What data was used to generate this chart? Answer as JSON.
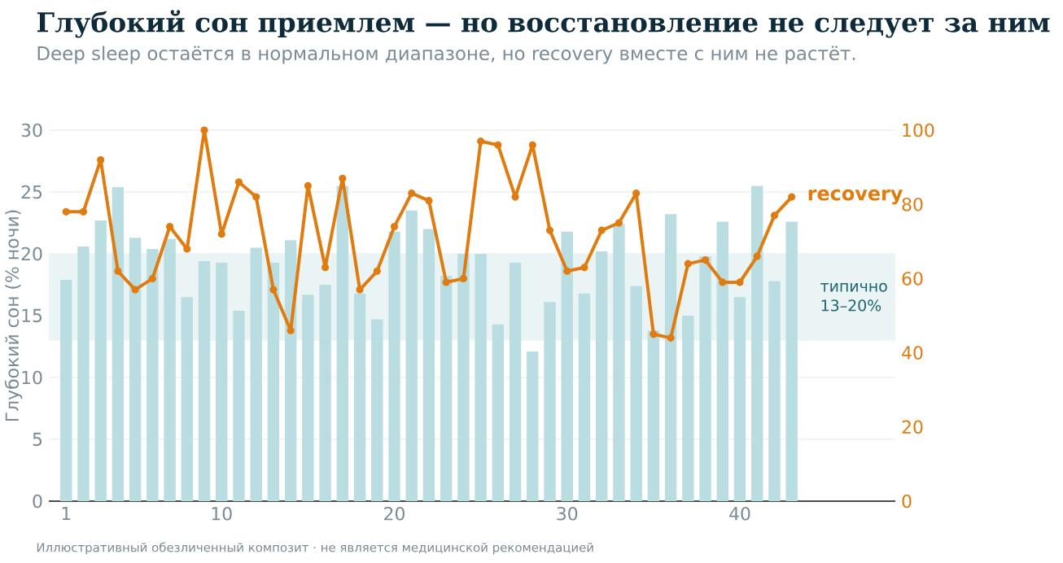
{
  "chart_data": {
    "type": "bar",
    "title": "Глубокий сон приемлем — но восстановление не следует за ним",
    "subtitle": "Deep sleep остаётся в нормальном диапазоне, но recovery вместе с ним не растёт.",
    "ylabel": "Глубокий сон (% ночи)",
    "x": [
      1,
      2,
      3,
      4,
      5,
      6,
      7,
      8,
      9,
      10,
      11,
      12,
      13,
      14,
      15,
      16,
      17,
      18,
      19,
      20,
      21,
      22,
      23,
      24,
      25,
      26,
      27,
      28,
      29,
      30,
      31,
      32,
      33,
      34,
      35,
      36,
      37,
      38,
      39,
      40,
      41,
      42,
      43
    ],
    "series": [
      {
        "color": "#b9dde1",
        "values": [
          17.9,
          20.6,
          22.7,
          25.4,
          21.3,
          20.4,
          21.2,
          16.5,
          19.4,
          19.3,
          15.4,
          20.5,
          19.3,
          21.1,
          16.7,
          17.5,
          25.5,
          16.8,
          14.7,
          21.8,
          23.5,
          22.0,
          18.2,
          20.0,
          20.0,
          14.3,
          19.3,
          12.1,
          16.1,
          21.8,
          16.8,
          20.2,
          22.4,
          17.4,
          13.8,
          23.2,
          15.0,
          19.8,
          22.6,
          16.5,
          25.5,
          17.8,
          22.6
        ]
      },
      {
        "type": "line",
        "name": "recovery",
        "color": "#e07b10",
        "axis": "y2",
        "values": [
          78,
          78,
          92,
          62,
          57,
          60,
          74,
          68,
          100,
          72,
          86,
          82,
          57,
          46,
          85,
          63,
          87,
          57,
          62,
          74,
          83,
          81,
          59,
          60,
          97,
          96,
          82,
          96,
          73,
          62,
          63,
          73,
          75,
          83,
          45,
          44,
          64,
          65,
          59,
          59,
          66,
          77,
          82
        ]
      }
    ],
    "xlim": [
      0,
      49
    ],
    "xticks": [
      1,
      10,
      20,
      30,
      40
    ],
    "ylim": [
      0,
      30
    ],
    "yticks": [
      0,
      5,
      10,
      15,
      20,
      25,
      30
    ],
    "y2lim": [
      0,
      100
    ],
    "y2ticks": [
      0,
      20,
      40,
      60,
      80,
      100
    ],
    "bands": [
      {
        "axis": "y",
        "from": 13,
        "to": 20,
        "label": "типично 13–20%",
        "color": "#eaf4f5"
      }
    ],
    "grid": "y",
    "marker": "circle",
    "line_style": "solid",
    "annotations": [
      "Иллюстративный обезличенный композит · не является медицинской рекомендацией"
    ]
  }
}
